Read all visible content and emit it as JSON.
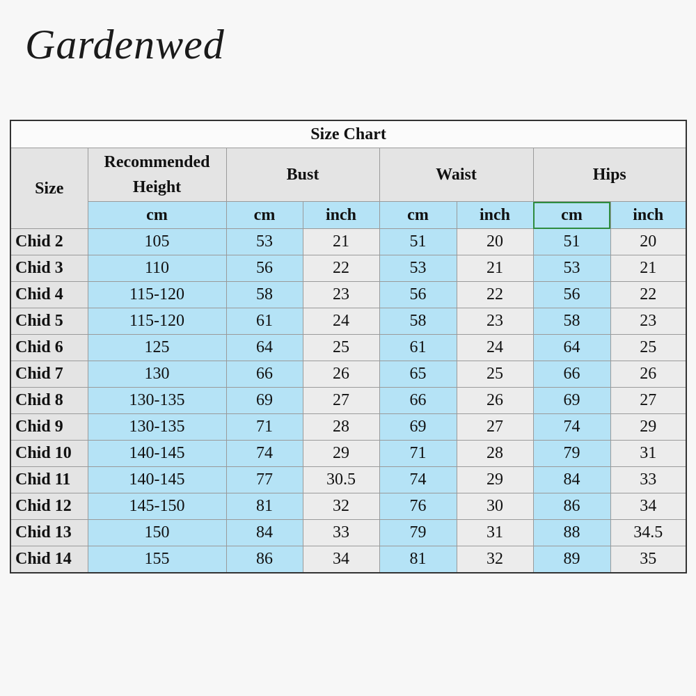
{
  "brand": "Gardenwed",
  "table": {
    "title": "Size Chart",
    "headers": [
      "Size",
      "Recommended Height",
      "Bust",
      "Waist",
      "Hips"
    ],
    "units": [
      "cm",
      "cm",
      "inch",
      "cm",
      "inch",
      "cm",
      "inch"
    ],
    "rows": [
      [
        "Chid 2",
        "105",
        "53",
        "21",
        "51",
        "20",
        "51",
        "20"
      ],
      [
        "Chid 3",
        "110",
        "56",
        "22",
        "53",
        "21",
        "53",
        "21"
      ],
      [
        "Chid 4",
        "115-120",
        "58",
        "23",
        "56",
        "22",
        "56",
        "22"
      ],
      [
        "Chid 5",
        "115-120",
        "61",
        "24",
        "58",
        "23",
        "58",
        "23"
      ],
      [
        "Chid 6",
        "125",
        "64",
        "25",
        "61",
        "24",
        "64",
        "25"
      ],
      [
        "Chid 7",
        "130",
        "66",
        "26",
        "65",
        "25",
        "66",
        "26"
      ],
      [
        "Chid 8",
        "130-135",
        "69",
        "27",
        "66",
        "26",
        "69",
        "27"
      ],
      [
        "Chid 9",
        "130-135",
        "71",
        "28",
        "69",
        "27",
        "74",
        "29"
      ],
      [
        "Chid 10",
        "140-145",
        "74",
        "29",
        "71",
        "28",
        "79",
        "31"
      ],
      [
        "Chid 11",
        "140-145",
        "77",
        "30.5",
        "74",
        "29",
        "84",
        "33"
      ],
      [
        "Chid 12",
        "145-150",
        "81",
        "32",
        "76",
        "30",
        "86",
        "34"
      ],
      [
        "Chid 13",
        "150",
        "84",
        "33",
        "79",
        "31",
        "88",
        "34.5"
      ],
      [
        "Chid 14",
        "155",
        "86",
        "34",
        "81",
        "32",
        "89",
        "35"
      ]
    ]
  }
}
